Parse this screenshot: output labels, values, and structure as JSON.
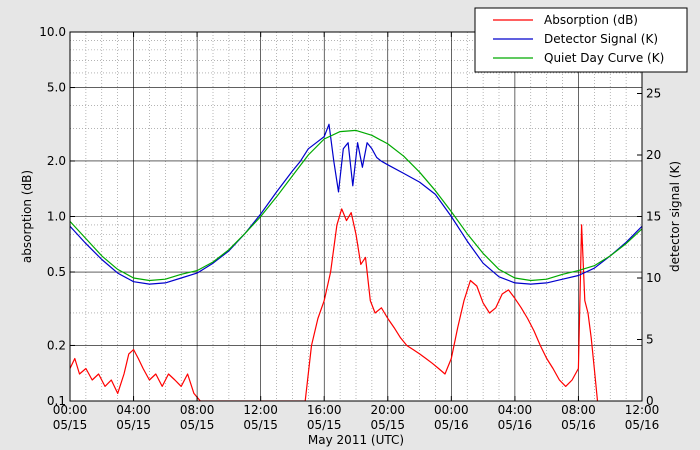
{
  "chart_data": {
    "type": "line",
    "xlabel": "May 2011 (UTC)",
    "ylabel_left": "absorption (dB)",
    "ylabel_right": "detector signal (K)",
    "x_unit": "hours since 2011-05-15 00:00 UTC",
    "xlim": [
      0,
      36
    ],
    "ylim_left": [
      0.1,
      10
    ],
    "yscale_left": "log",
    "ylim_right": [
      0,
      30
    ],
    "grid": true,
    "legend_position": "top-right",
    "x_ticks": [
      {
        "x": 0,
        "time": "00:00",
        "date": "05/15"
      },
      {
        "x": 4,
        "time": "04:00",
        "date": "05/15"
      },
      {
        "x": 8,
        "time": "08:00",
        "date": "05/15"
      },
      {
        "x": 12,
        "time": "12:00",
        "date": "05/15"
      },
      {
        "x": 16,
        "time": "16:00",
        "date": "05/15"
      },
      {
        "x": 20,
        "time": "20:00",
        "date": "05/15"
      },
      {
        "x": 24,
        "time": "00:00",
        "date": "05/16"
      },
      {
        "x": 28,
        "time": "04:00",
        "date": "05/16"
      },
      {
        "x": 32,
        "time": "08:00",
        "date": "05/16"
      },
      {
        "x": 36,
        "time": "12:00",
        "date": "05/16"
      }
    ],
    "y_ticks_left": [
      {
        "value": 0.1,
        "label": "0.1"
      },
      {
        "value": 0.2,
        "label": "0.2"
      },
      {
        "value": 0.5,
        "label": "0.5"
      },
      {
        "value": 1.0,
        "label": "1.0"
      },
      {
        "value": 2.0,
        "label": "2.0"
      },
      {
        "value": 5.0,
        "label": "5.0"
      },
      {
        "value": 10.0,
        "label": "10.0"
      }
    ],
    "y_ticks_right": [
      {
        "value": 0,
        "label": "0"
      },
      {
        "value": 5,
        "label": "5"
      },
      {
        "value": 10,
        "label": "10"
      },
      {
        "value": 15,
        "label": "15"
      },
      {
        "value": 20,
        "label": "20"
      },
      {
        "value": 25,
        "label": "25"
      }
    ],
    "series": [
      {
        "name": "Absorption (dB)",
        "color": "#ff0000",
        "axis": "left",
        "x": [
          0,
          0.3,
          0.6,
          1.0,
          1.4,
          1.8,
          2.2,
          2.6,
          3.0,
          3.4,
          3.7,
          4.0,
          4.3,
          4.6,
          5.0,
          5.4,
          5.8,
          6.2,
          6.6,
          7.0,
          7.4,
          7.8,
          8.2,
          14.8,
          15.2,
          15.6,
          16.0,
          16.4,
          16.8,
          17.1,
          17.4,
          17.7,
          18.0,
          18.3,
          18.6,
          18.9,
          19.2,
          19.6,
          20.0,
          20.4,
          20.8,
          21.2,
          21.6,
          22.0,
          22.4,
          22.8,
          23.2,
          23.6,
          24.0,
          24.4,
          24.8,
          25.2,
          25.6,
          26.0,
          26.4,
          26.8,
          27.2,
          27.6,
          28.0,
          28.4,
          28.8,
          29.2,
          29.6,
          30.0,
          30.4,
          30.8,
          31.2,
          31.6,
          32.0,
          32.2,
          32.4,
          32.6,
          32.8,
          33.0,
          33.2
        ],
        "y": [
          0.15,
          0.17,
          0.14,
          0.15,
          0.13,
          0.14,
          0.12,
          0.13,
          0.11,
          0.14,
          0.18,
          0.19,
          0.17,
          0.15,
          0.13,
          0.14,
          0.12,
          0.14,
          0.13,
          0.12,
          0.14,
          0.11,
          0.1,
          0.1,
          0.2,
          0.28,
          0.35,
          0.5,
          0.9,
          1.1,
          0.95,
          1.05,
          0.8,
          0.55,
          0.6,
          0.35,
          0.3,
          0.32,
          0.28,
          0.25,
          0.22,
          0.2,
          0.19,
          0.18,
          0.17,
          0.16,
          0.15,
          0.14,
          0.17,
          0.25,
          0.35,
          0.45,
          0.42,
          0.34,
          0.3,
          0.32,
          0.38,
          0.4,
          0.36,
          0.32,
          0.28,
          0.24,
          0.2,
          0.17,
          0.15,
          0.13,
          0.12,
          0.13,
          0.15,
          0.9,
          0.35,
          0.3,
          0.22,
          0.15,
          0.1
        ]
      },
      {
        "name": "Detector Signal (K)",
        "color": "#0000cc",
        "axis": "right",
        "x": [
          0,
          1,
          2,
          3,
          4,
          5,
          6,
          7,
          8,
          9,
          10,
          11,
          12,
          13,
          14,
          14.5,
          15,
          15.5,
          16,
          16.3,
          16.6,
          16.9,
          17.2,
          17.5,
          17.8,
          18.1,
          18.4,
          18.7,
          19,
          19.3,
          19.6,
          20,
          21,
          22,
          23,
          24,
          25,
          26,
          27,
          28,
          29,
          30,
          31,
          32,
          33,
          34,
          35,
          36
        ],
        "y": [
          14.2,
          12.8,
          11.5,
          10.4,
          9.7,
          9.5,
          9.6,
          10.0,
          10.4,
          11.2,
          12.2,
          13.6,
          15.2,
          17.0,
          18.7,
          19.5,
          20.5,
          21.0,
          21.5,
          22.5,
          19.5,
          17.0,
          20.5,
          21.0,
          17.5,
          21.0,
          19.0,
          21.0,
          20.5,
          19.8,
          19.5,
          19.2,
          18.5,
          17.8,
          16.8,
          15.0,
          13.0,
          11.2,
          10.1,
          9.6,
          9.5,
          9.6,
          9.9,
          10.2,
          10.8,
          11.8,
          12.9,
          14.2
        ]
      },
      {
        "name": "Quiet Day Curve (K)",
        "color": "#00aa00",
        "axis": "right",
        "x": [
          0,
          1,
          2,
          3,
          4,
          5,
          6,
          7,
          8,
          9,
          10,
          11,
          12,
          13,
          14,
          15,
          16,
          17,
          18,
          19,
          20,
          21,
          22,
          23,
          24,
          25,
          26,
          27,
          28,
          29,
          30,
          31,
          32,
          33,
          34,
          35,
          36
        ],
        "y": [
          14.6,
          13.2,
          11.8,
          10.7,
          10.0,
          9.8,
          9.9,
          10.3,
          10.6,
          11.3,
          12.3,
          13.6,
          15.0,
          16.6,
          18.3,
          20.0,
          21.3,
          21.9,
          22.0,
          21.6,
          20.9,
          19.9,
          18.6,
          17.1,
          15.4,
          13.6,
          12.0,
          10.7,
          10.0,
          9.8,
          9.9,
          10.3,
          10.6,
          11.0,
          11.8,
          12.8,
          14.0
        ]
      }
    ]
  }
}
